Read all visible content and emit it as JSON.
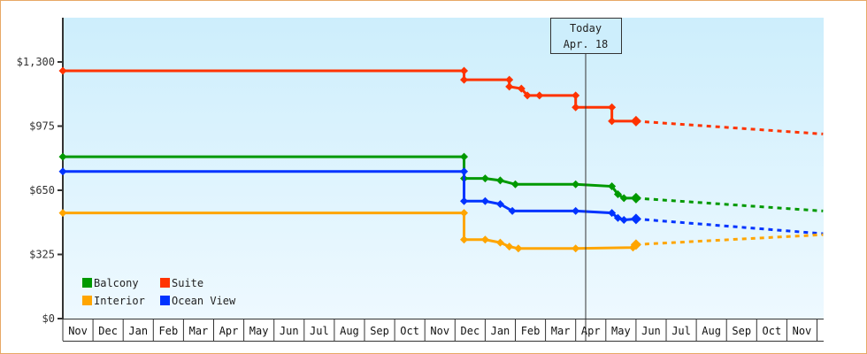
{
  "chart_data": {
    "type": "line",
    "title": "",
    "xlabel": "",
    "ylabel": "",
    "ylim": [
      0,
      1300
    ],
    "y_ticks": [
      "$0",
      "$325",
      "$650",
      "$975",
      "$1,300"
    ],
    "x_ticks": [
      "Nov",
      "Dec",
      "Jan",
      "Feb",
      "Mar",
      "Apr",
      "May",
      "Jun",
      "Jul",
      "Aug",
      "Sep",
      "Oct",
      "Nov",
      "Dec",
      "Jan",
      "Feb",
      "Mar",
      "Apr",
      "May",
      "Jun",
      "Jul",
      "Aug",
      "Sep",
      "Oct",
      "Nov"
    ],
    "legend_position": "lower-left inside",
    "grid": false,
    "annotation": {
      "line1": "Today",
      "line2": "Apr. 18"
    },
    "series": [
      {
        "name": "Suite",
        "color": "#ff3300",
        "historical": [
          [
            0,
            1255
          ],
          [
            13.3,
            1255
          ],
          [
            13.3,
            1210
          ],
          [
            14.8,
            1210
          ],
          [
            14.8,
            1175
          ],
          [
            15.2,
            1165
          ],
          [
            15.4,
            1130
          ],
          [
            15.8,
            1130
          ],
          [
            17.0,
            1130
          ],
          [
            17.0,
            1070
          ],
          [
            18.2,
            1070
          ],
          [
            18.2,
            1000
          ],
          [
            19.0,
            1000
          ]
        ],
        "forecast": [
          [
            19.0,
            1000
          ],
          [
            25.2,
            935
          ]
        ]
      },
      {
        "name": "Balcony",
        "color": "#009900",
        "historical": [
          [
            0,
            820
          ],
          [
            13.3,
            820
          ],
          [
            13.3,
            710
          ],
          [
            14.0,
            710
          ],
          [
            14.5,
            700
          ],
          [
            15.0,
            680
          ],
          [
            17.0,
            680
          ],
          [
            18.2,
            670
          ],
          [
            18.4,
            630
          ],
          [
            18.6,
            610
          ],
          [
            19.0,
            610
          ]
        ],
        "forecast": [
          [
            19.0,
            610
          ],
          [
            25.2,
            545
          ]
        ]
      },
      {
        "name": "Ocean View",
        "color": "#0033ff",
        "historical": [
          [
            0,
            745
          ],
          [
            13.3,
            745
          ],
          [
            13.3,
            595
          ],
          [
            14.0,
            595
          ],
          [
            14.5,
            580
          ],
          [
            14.9,
            545
          ],
          [
            17.0,
            545
          ],
          [
            18.2,
            535
          ],
          [
            18.4,
            510
          ],
          [
            18.6,
            500
          ],
          [
            19.0,
            505
          ]
        ],
        "forecast": [
          [
            19.0,
            505
          ],
          [
            25.2,
            430
          ]
        ]
      },
      {
        "name": "Interior",
        "color": "#ffa500",
        "historical": [
          [
            0,
            535
          ],
          [
            13.3,
            535
          ],
          [
            13.3,
            400
          ],
          [
            14.0,
            400
          ],
          [
            14.5,
            385
          ],
          [
            14.8,
            365
          ],
          [
            15.1,
            355
          ],
          [
            17.0,
            355
          ],
          [
            18.9,
            360
          ],
          [
            19.0,
            375
          ]
        ],
        "forecast": [
          [
            19.0,
            375
          ],
          [
            25.2,
            425
          ]
        ]
      }
    ]
  },
  "legend": [
    {
      "label": "Balcony",
      "color": "#009900"
    },
    {
      "label": "Suite",
      "color": "#ff3300"
    },
    {
      "label": "Interior",
      "color": "#ffa500"
    },
    {
      "label": "Ocean View",
      "color": "#0033ff"
    }
  ],
  "today_box": {
    "line1": "Today",
    "line2": "Apr. 18"
  },
  "y_axis": [
    "$1,300",
    "$975",
    "$650",
    "$325",
    "$0"
  ],
  "x_axis": [
    "Nov",
    "Dec",
    "Jan",
    "Feb",
    "Mar",
    "Apr",
    "May",
    "Jun",
    "Jul",
    "Aug",
    "Sep",
    "Oct",
    "Nov",
    "Dec",
    "Jan",
    "Feb",
    "Mar",
    "Apr",
    "May",
    "Jun",
    "Jul",
    "Aug",
    "Sep",
    "Oct",
    "Nov"
  ]
}
